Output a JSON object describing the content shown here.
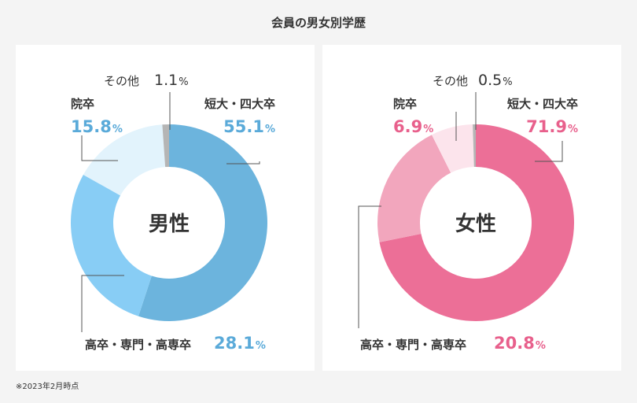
{
  "title": "会員の男女別学歴",
  "footnote": "※2023年2月時点",
  "unit": "%",
  "chart_data": [
    {
      "type": "pie",
      "center_label": "男性",
      "categories": [
        "短大・四大卒",
        "高卒・専門・高専卒",
        "院卒",
        "その他"
      ],
      "values": [
        55.1,
        28.1,
        15.8,
        1.1
      ],
      "value_labels": [
        "55.1",
        "28.1",
        "15.8",
        "1.1"
      ],
      "colors": [
        "#6cb4dd",
        "#88cdf5",
        "#e2f3fc",
        "#b5b5b5"
      ],
      "label_color": "#5aaad9"
    },
    {
      "type": "pie",
      "center_label": "女性",
      "categories": [
        "短大・四大卒",
        "高卒・専門・高専卒",
        "院卒",
        "その他"
      ],
      "values": [
        71.9,
        20.8,
        6.9,
        0.5
      ],
      "value_labels": [
        "71.9",
        "20.8",
        "6.9",
        "0.5"
      ],
      "colors": [
        "#ec6f97",
        "#f2a6bd",
        "#fce4ec",
        "#b5b5b5"
      ],
      "label_color": "#e8608c"
    }
  ]
}
